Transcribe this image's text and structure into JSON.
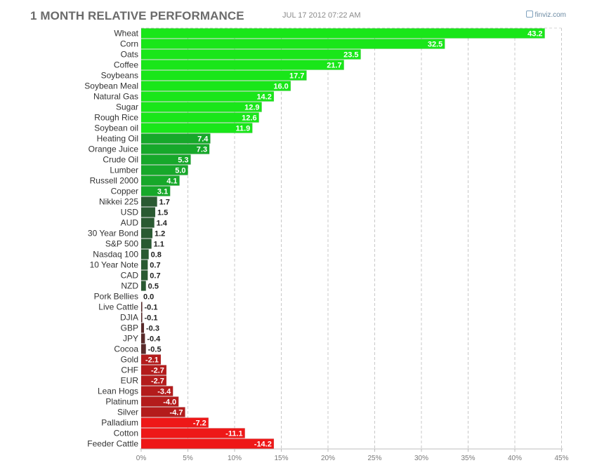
{
  "header": {
    "title": "1 MONTH RELATIVE PERFORMANCE",
    "timestamp": "JUL 17 2012 07:22 AM",
    "brand": "finviz.com"
  },
  "chart_data": {
    "type": "bar",
    "orientation": "horizontal",
    "x_unit": "%",
    "xlim": [
      0,
      45
    ],
    "xticks": [
      "0%",
      "5%",
      "10%",
      "15%",
      "20%",
      "25%",
      "30%",
      "35%",
      "40%",
      "45%"
    ],
    "grid": "vertical dashed",
    "categories": [
      "Wheat",
      "Corn",
      "Oats",
      "Coffee",
      "Soybeans",
      "Soybean Meal",
      "Natural Gas",
      "Sugar",
      "Rough Rice",
      "Soybean oil",
      "Heating Oil",
      "Orange Juice",
      "Crude Oil",
      "Lumber",
      "Russell 2000",
      "Copper",
      "Nikkei 225",
      "USD",
      "AUD",
      "30 Year Bond",
      "S&P 500",
      "Nasdaq 100",
      "10 Year Note",
      "CAD",
      "NZD",
      "Pork Bellies",
      "Live Cattle",
      "DJIA",
      "GBP",
      "JPY",
      "Cocoa",
      "Gold",
      "CHF",
      "EUR",
      "Lean Hogs",
      "Platinum",
      "Silver",
      "Palladium",
      "Cotton",
      "Feeder Cattle"
    ],
    "values": [
      43.2,
      32.5,
      23.5,
      21.7,
      17.7,
      16.0,
      14.2,
      12.9,
      12.6,
      11.9,
      7.4,
      7.3,
      5.3,
      5.0,
      4.1,
      3.1,
      1.7,
      1.5,
      1.4,
      1.2,
      1.1,
      0.8,
      0.7,
      0.7,
      0.5,
      0.0,
      -0.1,
      -0.1,
      -0.3,
      -0.4,
      -0.5,
      -2.1,
      -2.7,
      -2.7,
      -3.4,
      -4.0,
      -4.7,
      -7.2,
      -11.1,
      -14.2
    ],
    "value_labels": [
      "43.2",
      "32.5",
      "23.5",
      "21.7",
      "17.7",
      "16.0",
      "14.2",
      "12.9",
      "12.6",
      "11.9",
      "7.4",
      "7.3",
      "5.3",
      "5.0",
      "4.1",
      "3.1",
      "1.7",
      "1.5",
      "1.4",
      "1.2",
      "1.1",
      "0.8",
      "0.7",
      "0.7",
      "0.5",
      "0.0",
      "-0.1",
      "-0.1",
      "-0.3",
      "-0.4",
      "-0.5",
      "-2.1",
      "-2.7",
      "-2.7",
      "-3.4",
      "-4.0",
      "-4.7",
      "-7.2",
      "-11.1",
      "-14.2"
    ],
    "colors": {
      "positive_strong": "#19e619",
      "positive_mid": "#17a82a",
      "positive_weak": "#2a5a32",
      "negative_weak": "#5a2a2a",
      "negative_mid": "#b41c1c",
      "negative_strong": "#ee1818"
    }
  }
}
